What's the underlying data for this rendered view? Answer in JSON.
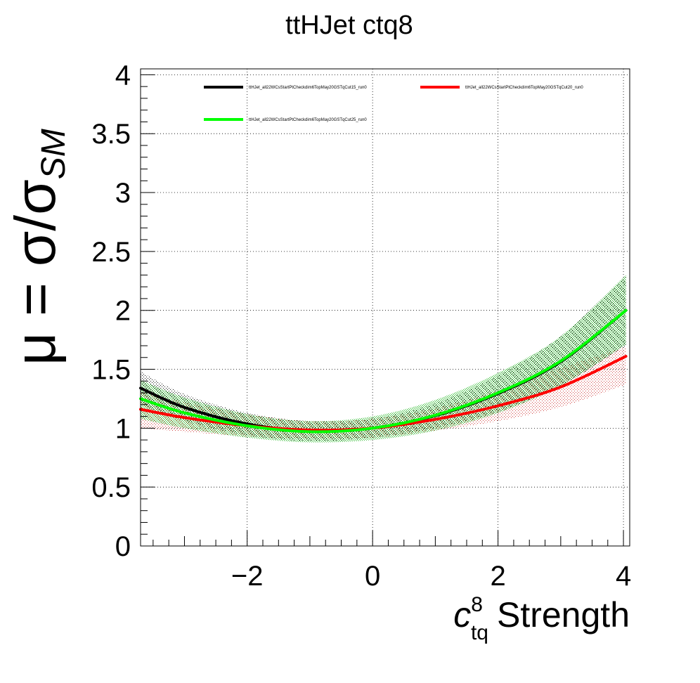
{
  "chart_data": {
    "type": "line",
    "title": "ttHJet ctq8",
    "xlabel": {
      "symbol": "c",
      "superscript": "8",
      "subscript": "tq",
      "suffix": "Strength"
    },
    "ylabel": {
      "prefix": "μ = σ/σ",
      "subscript": "SM"
    },
    "xlim": [
      -3.7,
      4.1
    ],
    "ylim": [
      0,
      4.05
    ],
    "x_ticks": [
      {
        "value": -2,
        "label": "−2"
      },
      {
        "value": 0,
        "label": "0"
      },
      {
        "value": 2,
        "label": "2"
      },
      {
        "value": 4,
        "label": "4"
      }
    ],
    "y_ticks": [
      {
        "value": 0,
        "label": "0"
      },
      {
        "value": 0.5,
        "label": "0.5"
      },
      {
        "value": 1,
        "label": "1"
      },
      {
        "value": 1.5,
        "label": "1.5"
      },
      {
        "value": 2,
        "label": "2"
      },
      {
        "value": 2.5,
        "label": "2.5"
      },
      {
        "value": 3,
        "label": "3"
      },
      {
        "value": 3.5,
        "label": "3.5"
      },
      {
        "value": 4,
        "label": "4"
      }
    ],
    "grid": true,
    "legend_position": "top",
    "series": [
      {
        "name": "ttHJet_all22WCsStartPtCheckdim6TopMay20GSTqCut15_run0",
        "color": "#000000",
        "band_color": "#000000",
        "x": [
          -3.7,
          -3,
          -2,
          -1,
          0,
          1,
          2,
          3,
          4.04
        ],
        "y": [
          1.34,
          1.176,
          1.036,
          0.976,
          1.0,
          1.106,
          1.294,
          1.564,
          2.0
        ],
        "band_low": [
          1.2,
          1.06,
          0.94,
          0.89,
          0.92,
          1.0,
          1.14,
          1.36,
          1.7
        ],
        "band_high": [
          1.48,
          1.29,
          1.13,
          1.06,
          1.08,
          1.21,
          1.45,
          1.78,
          2.3
        ]
      },
      {
        "name": "ttHJet_all22WCsStartPtCheckdim6TopMay20GSTqCut20_run0",
        "color": "#ff0000",
        "band_color": "#cc3333",
        "x": [
          -3.7,
          -3,
          -2,
          -1,
          0,
          1,
          2,
          3,
          4.04
        ],
        "y": [
          1.16,
          1.09,
          1.02,
          0.985,
          1.0,
          1.075,
          1.19,
          1.35,
          1.61
        ],
        "band_low": [
          1.0,
          0.97,
          0.93,
          0.91,
          0.92,
          0.98,
          1.06,
          1.18,
          1.37
        ],
        "band_high": [
          1.31,
          1.22,
          1.12,
          1.06,
          1.08,
          1.17,
          1.32,
          1.51,
          1.69
        ]
      },
      {
        "name": "ttHJet_all22WCsStartPtCheckdim6TopMay20GSTqCut25_run0",
        "color": "#00ff00",
        "band_color": "#33bb33",
        "x": [
          -3.7,
          -3,
          -2,
          -1,
          0,
          1,
          2,
          3,
          4.04
        ],
        "y": [
          1.25,
          1.13,
          1.02,
          0.97,
          1.0,
          1.11,
          1.3,
          1.57,
          2.0
        ],
        "band_low": [
          1.08,
          1.0,
          0.92,
          0.88,
          0.9,
          0.98,
          1.13,
          1.36,
          1.71
        ],
        "band_high": [
          1.41,
          1.26,
          1.12,
          1.06,
          1.1,
          1.24,
          1.47,
          1.78,
          2.3
        ]
      }
    ]
  }
}
